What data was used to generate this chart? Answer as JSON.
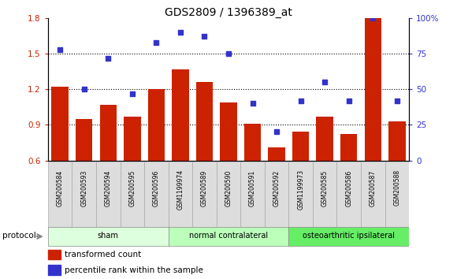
{
  "title": "GDS2809 / 1396389_at",
  "samples": [
    "GSM200584",
    "GSM200593",
    "GSM200594",
    "GSM200595",
    "GSM200596",
    "GSM1199974",
    "GSM200589",
    "GSM200590",
    "GSM200591",
    "GSM200592",
    "GSM1199973",
    "GSM200585",
    "GSM200586",
    "GSM200587",
    "GSM200588"
  ],
  "bar_values": [
    1.22,
    0.95,
    1.07,
    0.97,
    1.2,
    1.37,
    1.26,
    1.09,
    0.91,
    0.71,
    0.84,
    0.97,
    0.82,
    1.8,
    0.93
  ],
  "dot_values": [
    78,
    50,
    72,
    47,
    83,
    90,
    87,
    75,
    40,
    20,
    42,
    55,
    42,
    100,
    42
  ],
  "bar_color": "#cc2200",
  "dot_color": "#3333cc",
  "ylim_left": [
    0.6,
    1.8
  ],
  "ylim_right": [
    0,
    100
  ],
  "yticks_left": [
    0.6,
    0.9,
    1.2,
    1.5,
    1.8
  ],
  "yticks_right": [
    0,
    25,
    50,
    75,
    100
  ],
  "ytick_labels_right": [
    "0",
    "25",
    "50",
    "75",
    "100%"
  ],
  "groups": [
    {
      "label": "sham",
      "start": 0,
      "end": 4,
      "color": "#ddffdd"
    },
    {
      "label": "normal contralateral",
      "start": 5,
      "end": 9,
      "color": "#bbffbb"
    },
    {
      "label": "osteoarthritic ipsilateral",
      "start": 10,
      "end": 14,
      "color": "#66ee66"
    }
  ],
  "protocol_label": "protocol",
  "legend_bar_label": "transformed count",
  "legend_dot_label": "percentile rank within the sample",
  "tick_label_color_left": "#cc2200",
  "tick_label_color_right": "#3333cc",
  "sample_box_color": "#dddddd",
  "grid_yticks": [
    0.9,
    1.2,
    1.5
  ]
}
